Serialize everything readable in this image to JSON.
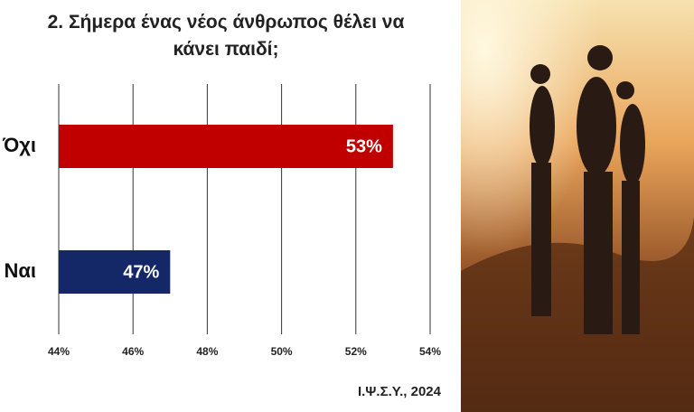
{
  "chart_data": {
    "type": "bar",
    "orientation": "horizontal",
    "title": "2. Σήμερα ένας νέος άνθρωπος θέλει να κάνει παιδί;",
    "categories": [
      "Όχι",
      "Ναι"
    ],
    "values": [
      53,
      47
    ],
    "value_labels": [
      "53%",
      "47%"
    ],
    "colors": [
      "#c00000",
      "#142766"
    ],
    "xlim": [
      44,
      54
    ],
    "xticks": [
      {
        "value": 44,
        "label": "44%"
      },
      {
        "value": 46,
        "label": "46%"
      },
      {
        "value": 48,
        "label": "48%"
      },
      {
        "value": 50,
        "label": "50%"
      },
      {
        "value": 52,
        "label": "52%"
      },
      {
        "value": 54,
        "label": "54%"
      }
    ],
    "grid": true,
    "source": "Ι.Ψ.Σ.Υ., 2024"
  }
}
